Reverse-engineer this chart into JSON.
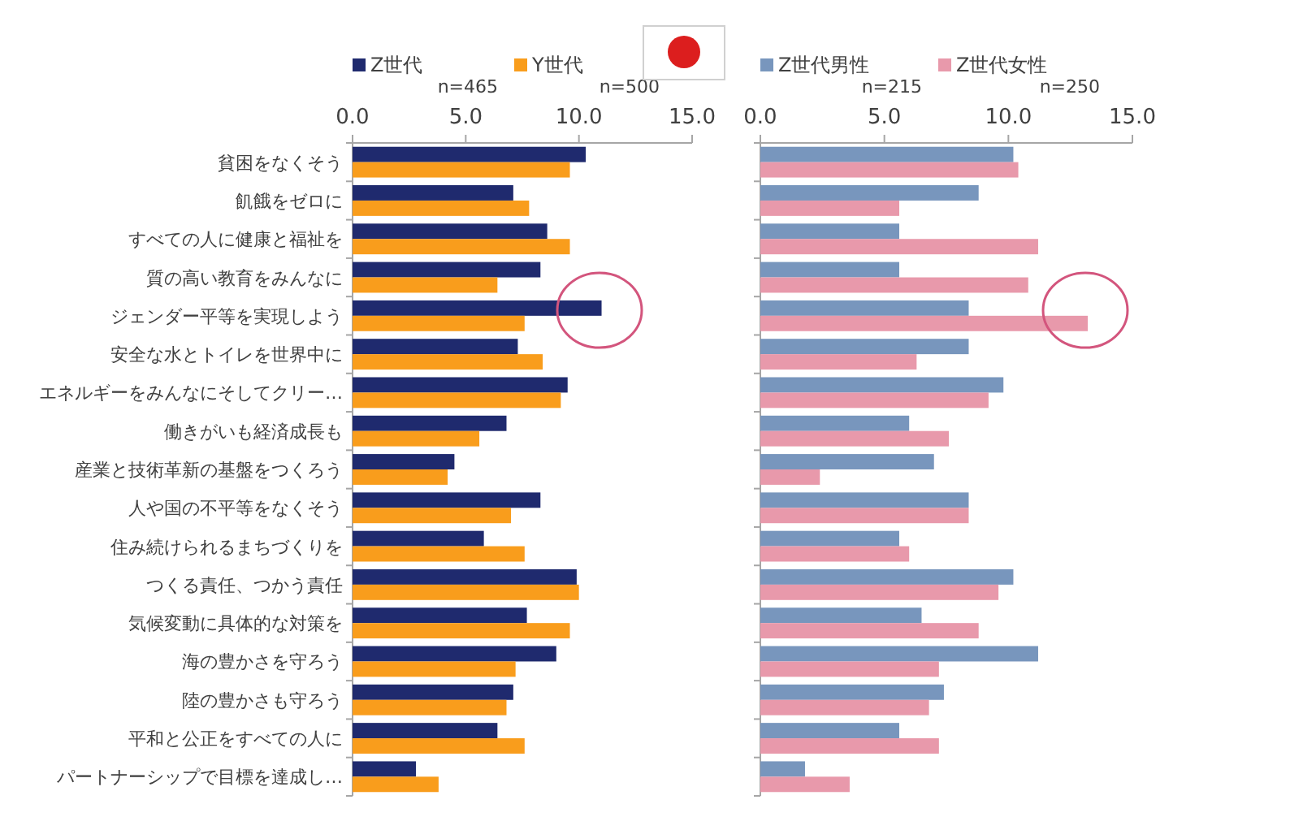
{
  "chart_data": [
    {
      "type": "bar",
      "orientation": "horizontal",
      "categories": [
        "貧困をなくそう",
        "飢餓をゼロに",
        "すべての人に健康と福祉を",
        "質の高い教育をみんなに",
        "ジェンダー平等を実現しよう",
        "安全な水とトイレを世界中に",
        "エネルギーをみんなにそしてクリー…",
        "働きがいも経済成長も",
        "産業と技術革新の基盤をつくろう",
        "人や国の不平等をなくそう",
        "住み続けられるまちづくりを",
        "つくる責任、つかう責任",
        "気候変動に具体的な対策を",
        "海の豊かさを守ろう",
        "陸の豊かさも守ろう",
        "平和と公正をすべての人に",
        "パートナーシップで目標を達成し…"
      ],
      "series": [
        {
          "name": "Z世代",
          "color": "#1f2a6e",
          "values": [
            10.3,
            7.1,
            8.6,
            8.3,
            11.0,
            7.3,
            9.5,
            6.8,
            4.5,
            8.3,
            5.8,
            9.9,
            7.7,
            9.0,
            7.1,
            6.4,
            2.8
          ]
        },
        {
          "name": "Y世代",
          "color": "#f99d1c",
          "values": [
            9.6,
            7.8,
            9.6,
            6.4,
            7.6,
            8.4,
            9.2,
            5.6,
            4.2,
            7.0,
            7.6,
            10.0,
            9.6,
            7.2,
            6.8,
            7.6,
            3.8
          ]
        }
      ],
      "xlim": [
        0,
        15
      ],
      "xticks": [
        {
          "value": 0,
          "label": "0.0"
        },
        {
          "value": 5,
          "label": "5.0"
        },
        {
          "value": 10,
          "label": "10.0"
        },
        {
          "value": 15,
          "label": "15.0"
        }
      ],
      "legend": "top",
      "annotations": [
        "n=465",
        "n=500"
      ]
    },
    {
      "type": "bar",
      "orientation": "horizontal",
      "categories": [
        null,
        null,
        null,
        null,
        null,
        null,
        null,
        null,
        null,
        null,
        null,
        null,
        null,
        null,
        null,
        null,
        null
      ],
      "series": [
        {
          "name": "Z世代男性",
          "color": "#7896bd",
          "values": [
            10.2,
            8.8,
            5.6,
            5.6,
            8.4,
            8.4,
            9.8,
            6.0,
            7.0,
            8.4,
            5.6,
            10.2,
            6.5,
            11.2,
            7.4,
            5.6,
            1.8
          ]
        },
        {
          "name": "Z世代女性",
          "color": "#e899ab",
          "values": [
            10.4,
            5.6,
            11.2,
            10.8,
            13.2,
            6.3,
            9.2,
            7.6,
            2.4,
            8.4,
            6.0,
            9.6,
            8.8,
            7.2,
            6.8,
            7.2,
            3.6
          ]
        }
      ],
      "xlim": [
        0,
        15
      ],
      "xticks": [
        {
          "value": 0,
          "label": "0.0"
        },
        {
          "value": 5,
          "label": "5.0"
        },
        {
          "value": 10,
          "label": "10.0"
        },
        {
          "value": 15,
          "label": "15.0"
        }
      ],
      "legend": "top",
      "annotations": [
        "n=215",
        "n=250"
      ]
    }
  ]
}
